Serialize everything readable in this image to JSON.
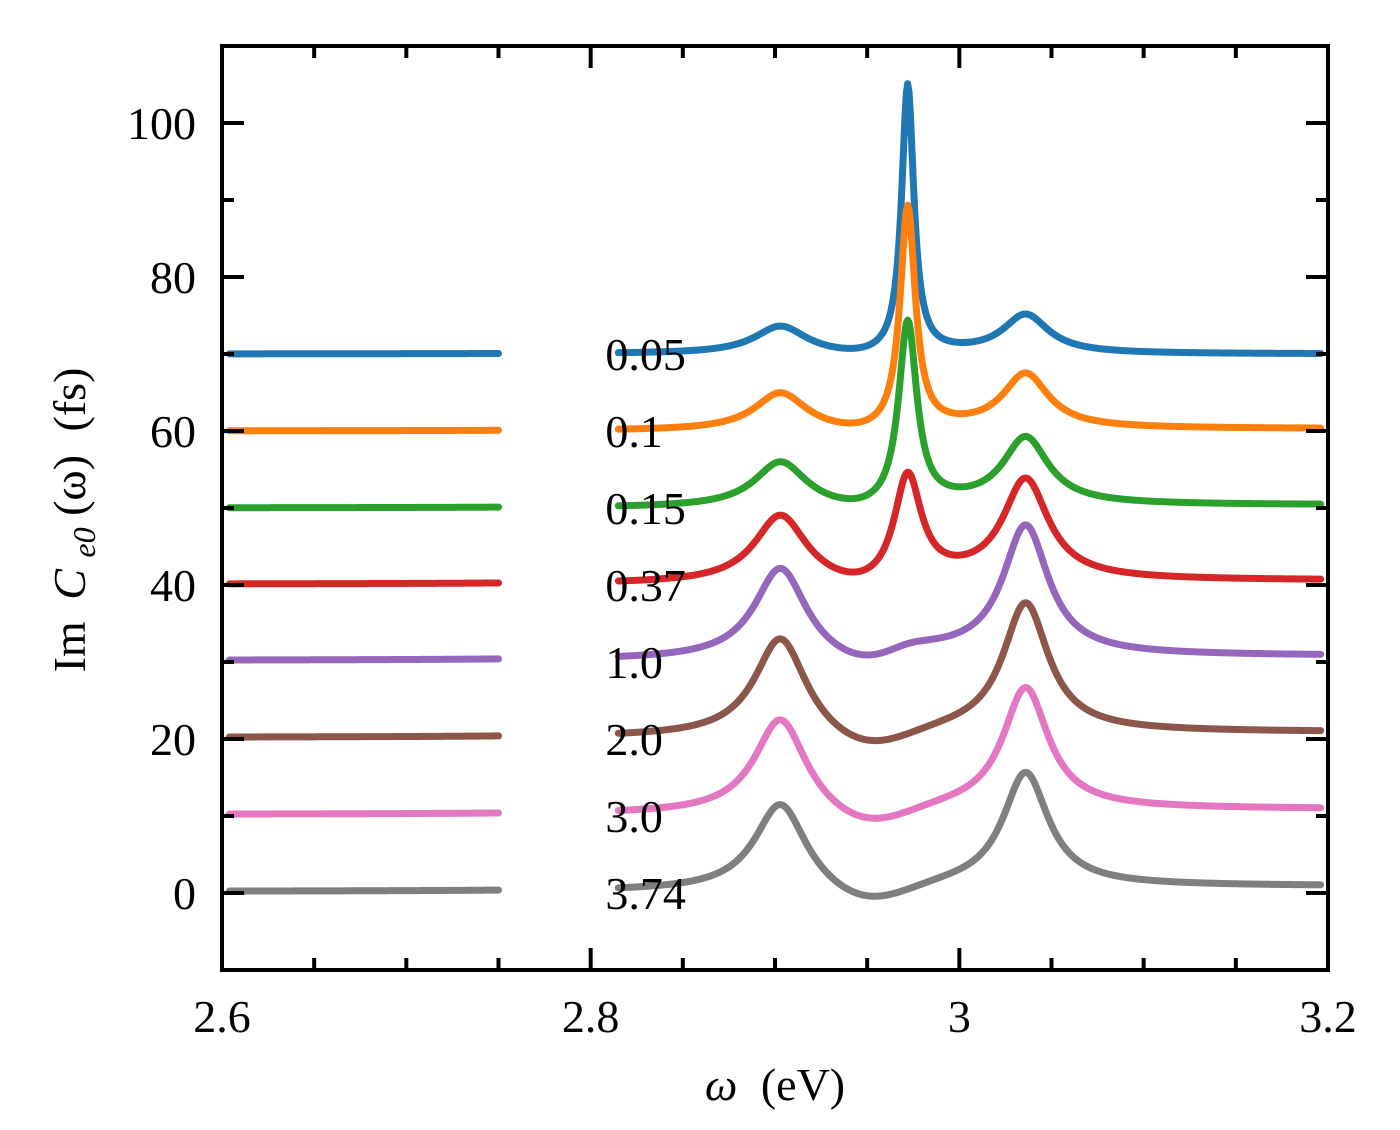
{
  "chart_data": {
    "type": "line",
    "title": "",
    "xlabel_symbol": "ω",
    "xlabel_unit": "(eV)",
    "ylabel_prefix": "Im",
    "ylabel_symbol": "C",
    "ylabel_sub": "e0",
    "ylabel_arg": "(ω)",
    "ylabel_unit": "(fs)",
    "xlim": [
      2.6,
      3.2
    ],
    "ylim": [
      -10,
      110
    ],
    "xticks": [
      2.6,
      2.8,
      3.0,
      3.2
    ],
    "xtick_labels": [
      "2.6",
      "2.8",
      "3",
      "3.2"
    ],
    "yticks": [
      0,
      20,
      40,
      60,
      80,
      100
    ],
    "ytick_labels": [
      "0",
      "20",
      "40",
      "60",
      "80",
      "100"
    ],
    "label_x": 2.808,
    "series": [
      {
        "name": "0.05",
        "color": "#1f77b4",
        "offset": 70,
        "base_left": 0.0,
        "base_right": 0.0,
        "peak1": 3.5,
        "peak2": 5.0,
        "center_h": 35.0,
        "center_w": 0.004,
        "center_valley": 0.6
      },
      {
        "name": "0.1",
        "color": "#ff7f0e",
        "offset": 60,
        "base_left": 0.0,
        "base_right": 0.3,
        "peak1": 4.8,
        "peak2": 7.3,
        "center_h": 29.0,
        "center_w": 0.005,
        "center_valley": 0.8
      },
      {
        "name": "0.15",
        "color": "#2ca02c",
        "offset": 50,
        "base_left": 0.0,
        "base_right": 0.4,
        "peak1": 5.8,
        "peak2": 9.0,
        "center_h": 24.0,
        "center_w": 0.006,
        "center_valley": 1.0
      },
      {
        "name": "0.37",
        "color": "#d62728",
        "offset": 40,
        "base_left": 0.1,
        "base_right": 0.6,
        "peak1": 8.8,
        "peak2": 13.5,
        "center_h": 14.0,
        "center_w": 0.009,
        "center_valley": 1.5
      },
      {
        "name": "1.0",
        "color": "#9467bd",
        "offset": 30,
        "base_left": 0.2,
        "base_right": 0.8,
        "peak1": 12.0,
        "peak2": 17.5,
        "center_h": 1.5,
        "center_w": 0.02,
        "center_valley": 2.0
      },
      {
        "name": "2.0",
        "color": "#8c564b",
        "offset": 20,
        "base_left": 0.2,
        "base_right": 0.9,
        "peak1": 13.0,
        "peak2": 17.5,
        "center_h": 0,
        "center_w": 0.02,
        "center_valley": 2.5
      },
      {
        "name": "3.0",
        "color": "#e377c2",
        "offset": 10,
        "base_left": 0.2,
        "base_right": 0.9,
        "peak1": 12.5,
        "peak2": 16.5,
        "center_h": 0,
        "center_w": 0.02,
        "center_valley": 2.5
      },
      {
        "name": "3.74",
        "color": "#7f7f7f",
        "offset": 0,
        "base_left": 0.2,
        "base_right": 0.9,
        "peak1": 11.5,
        "peak2": 15.5,
        "center_h": 0,
        "center_w": 0.02,
        "center_valley": 2.5
      }
    ],
    "peak_positions": {
      "left": 2.903,
      "center": 2.972,
      "right": 3.036
    }
  }
}
